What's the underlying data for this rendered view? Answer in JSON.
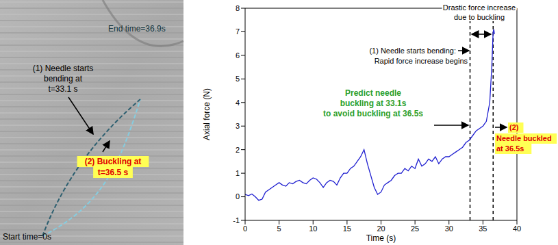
{
  "image_panel": {
    "labels": {
      "end": "End time=36.9s",
      "bend": [
        "(1) Needle starts",
        "bending at",
        "t=33.1 s"
      ],
      "buckle": [
        "(2) Buckling at",
        "t=36.5 s"
      ],
      "start": "Start time=0s"
    }
  },
  "chart_data": {
    "type": "line",
    "xlabel": "Time (s)",
    "ylabel": "Axial force (N)",
    "xlim": [
      0,
      40
    ],
    "ylim": [
      -1,
      8
    ],
    "xticks": [
      0,
      5,
      10,
      15,
      20,
      25,
      30,
      35,
      40
    ],
    "yticks": [
      -1,
      0,
      1,
      2,
      3,
      4,
      5,
      6,
      7,
      8
    ],
    "color": "#1f1fd0",
    "x": [
      0,
      0.5,
      1,
      1.5,
      2,
      2.5,
      3,
      3.5,
      4,
      4.5,
      5,
      5.5,
      6,
      6.5,
      7,
      7.5,
      8,
      8.5,
      9,
      9.5,
      10,
      10.5,
      11,
      11.5,
      12,
      12.5,
      13,
      13.5,
      14,
      14.5,
      15,
      15.5,
      16,
      16.5,
      17,
      17.5,
      18,
      18.5,
      19,
      19.5,
      20,
      20.5,
      21,
      21.5,
      22,
      22.5,
      23,
      23.5,
      24,
      24.5,
      25,
      25.5,
      26,
      26.5,
      27,
      27.5,
      28,
      28.5,
      29,
      29.5,
      30,
      30.5,
      31,
      31.5,
      32,
      32.5,
      33,
      33.5,
      34,
      34.5,
      35,
      35.5,
      36,
      36.3,
      36.5,
      36.6,
      36.7
    ],
    "values": [
      0.1,
      0.05,
      0.12,
      0.0,
      -0.15,
      -0.1,
      0.2,
      0.3,
      0.4,
      0.5,
      0.6,
      0.5,
      0.45,
      0.6,
      0.55,
      0.65,
      0.7,
      0.6,
      0.55,
      0.7,
      0.8,
      0.75,
      0.6,
      0.4,
      0.6,
      0.7,
      0.65,
      0.5,
      0.8,
      1.0,
      1.0,
      1.2,
      1.3,
      1.5,
      1.7,
      2.0,
      1.4,
      0.9,
      0.4,
      0.1,
      0.2,
      0.5,
      0.6,
      0.7,
      0.9,
      1.0,
      1.0,
      1.2,
      1.1,
      1.3,
      1.2,
      1.6,
      1.3,
      1.4,
      1.6,
      1.5,
      1.7,
      1.4,
      1.6,
      1.7,
      1.7,
      1.8,
      1.9,
      2.0,
      2.1,
      2.3,
      2.4,
      2.6,
      2.8,
      2.9,
      3.0,
      3.2,
      4.0,
      5.5,
      7.0,
      7.1,
      6.9
    ],
    "reference_lines": [
      33.1,
      36.5
    ],
    "annotations": {
      "drastic": [
        "Drastic force increase",
        "due to buckling"
      ],
      "bending": [
        "(1) Needle starts bending:",
        "Rapid force increase begins"
      ],
      "predict": [
        "Predict needle",
        "buckling at 33.1s",
        "to avoid buckling at 36.5s"
      ],
      "buckled": [
        "(2)",
        "Needle buckled",
        "at 36.5s"
      ]
    }
  }
}
